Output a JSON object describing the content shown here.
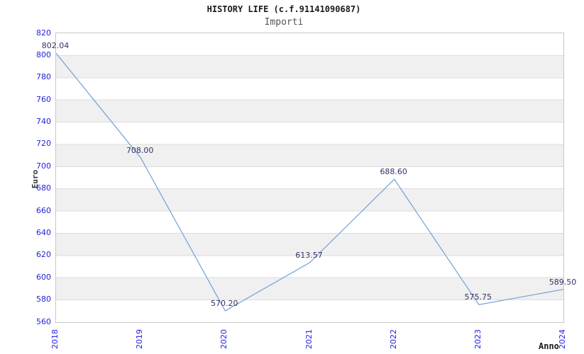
{
  "chart_data": {
    "type": "line",
    "title": "HISTORY LIFE (c.f.91141090687)",
    "subtitle": "Importi",
    "xlabel": "Anno",
    "ylabel": "Euro",
    "categories": [
      "2018",
      "2019",
      "2020",
      "2021",
      "2022",
      "2023",
      "2024"
    ],
    "values": [
      802.04,
      708.0,
      570.2,
      613.57,
      688.6,
      575.75,
      589.5
    ],
    "point_labels": [
      "802.04",
      "708.00",
      "570.20",
      "613.57",
      "688.60",
      "575.75",
      "589.50"
    ],
    "ylim": [
      560,
      820
    ],
    "y_tick_step": 20,
    "y_ticks": [
      "820",
      "800",
      "780",
      "760",
      "740",
      "720",
      "700",
      "680",
      "660",
      "640",
      "620",
      "600",
      "580",
      "560"
    ],
    "grid": "horizontal-bands",
    "legend": "none",
    "colors": {
      "line": "#70a0d8",
      "tick_label": "#2222dd",
      "point_label": "#333366",
      "band": "#f0f0f0",
      "gridline": "#dddddd",
      "plot_border": "#c6c6c6",
      "title": "#1a1a1a",
      "subtitle": "#555555",
      "axis_title": "#333333"
    }
  }
}
